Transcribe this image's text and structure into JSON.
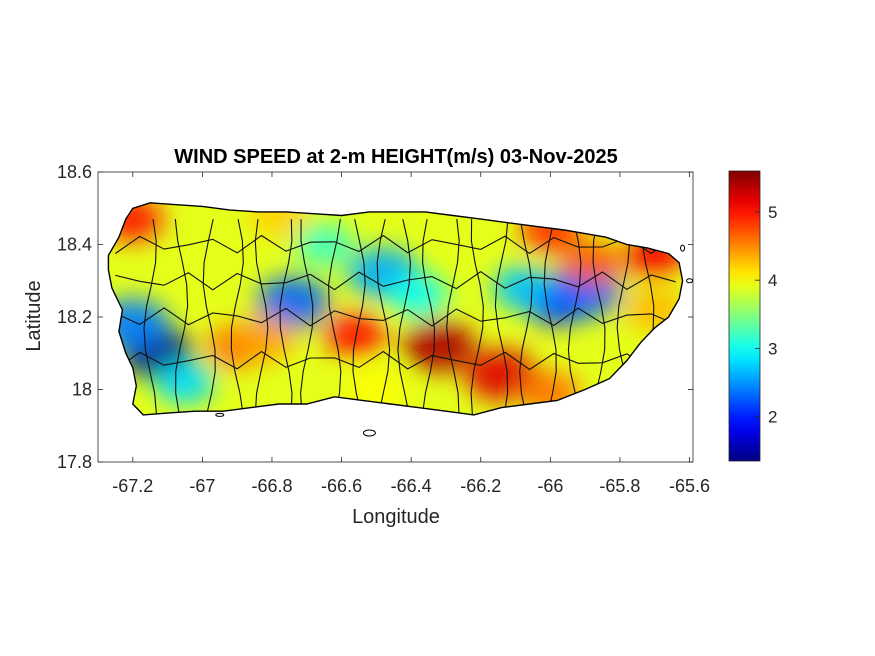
{
  "chart_data": {
    "type": "heatmap",
    "title": "WIND SPEED at 2-m HEIGHT(m/s) 03-Nov-2025",
    "xlabel": "Longitude",
    "ylabel": "Latitude",
    "xlim": [
      -67.3,
      -65.59
    ],
    "ylim": [
      17.8,
      18.6
    ],
    "x_ticks": [
      -67.2,
      -67,
      -66.8,
      -66.6,
      -66.4,
      -66.2,
      -66,
      -65.8,
      -65.6
    ],
    "x_tick_labels": [
      "-67.2",
      "-67",
      "-66.8",
      "-66.6",
      "-66.4",
      "-66.2",
      "-66",
      "-65.8",
      "-65.6"
    ],
    "y_ticks": [
      17.8,
      18,
      18.2,
      18.4,
      18.6
    ],
    "y_tick_labels": [
      "17.8",
      "18",
      "18.2",
      "18.4",
      "18.6"
    ],
    "colormap": "jet",
    "colorbar": {
      "range": [
        1.35,
        5.6
      ],
      "ticks": [
        2,
        3,
        4,
        5
      ],
      "tick_labels": [
        "2",
        "3",
        "4",
        "5"
      ],
      "placement": "right"
    },
    "grid": false,
    "field_features": [
      {
        "lon": -67.13,
        "lat": 18.1,
        "value": 1.4
      },
      {
        "lon": -67.2,
        "lat": 18.18,
        "value": 2.4
      },
      {
        "lon": -67.05,
        "lat": 18.02,
        "value": 2.8
      },
      {
        "lon": -66.74,
        "lat": 18.24,
        "value": 2.3
      },
      {
        "lon": -66.48,
        "lat": 18.32,
        "value": 2.6
      },
      {
        "lon": -66.38,
        "lat": 18.26,
        "value": 3.0
      },
      {
        "lon": -65.98,
        "lat": 18.25,
        "value": 2.0
      },
      {
        "lon": -65.9,
        "lat": 18.27,
        "value": 2.3
      },
      {
        "lon": -66.08,
        "lat": 18.28,
        "value": 2.7
      },
      {
        "lon": -66.65,
        "lat": 18.4,
        "value": 3.2
      },
      {
        "lon": -67.2,
        "lat": 18.47,
        "value": 5.0
      },
      {
        "lon": -66.32,
        "lat": 18.12,
        "value": 5.4
      },
      {
        "lon": -66.14,
        "lat": 18.04,
        "value": 5.2
      },
      {
        "lon": -66.56,
        "lat": 18.15,
        "value": 5.0
      },
      {
        "lon": -65.7,
        "lat": 18.37,
        "value": 5.1
      },
      {
        "lon": -66.0,
        "lat": 18.44,
        "value": 4.9
      },
      {
        "lon": -65.88,
        "lat": 18.35,
        "value": 4.7
      },
      {
        "lon": -66.9,
        "lat": 18.12,
        "value": 4.6
      },
      {
        "lon": -66.82,
        "lat": 18.14,
        "value": 4.4
      },
      {
        "lon": -66.0,
        "lat": 17.99,
        "value": 4.6
      },
      {
        "lon": -66.78,
        "lat": 18.48,
        "value": 4.2
      },
      {
        "lon": -66.5,
        "lat": 18.0,
        "value": 4.0
      },
      {
        "lon": -65.7,
        "lat": 18.22,
        "value": 4.3
      }
    ]
  }
}
